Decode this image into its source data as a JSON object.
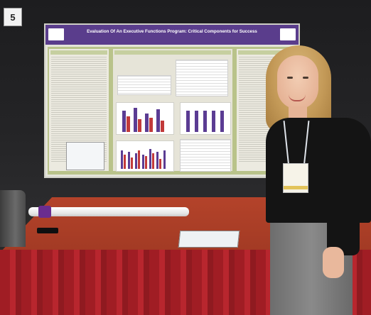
{
  "photo": {
    "booth_number": "5",
    "poster_title": "Evaluation Of An Executive Functions Program: Critical Components for Success",
    "colors": {
      "poster_header": "#5a3d8c",
      "poster_body": "#b9c38a",
      "tablecloth": "#a01d24",
      "backdrop": "#1d1d1f"
    }
  }
}
